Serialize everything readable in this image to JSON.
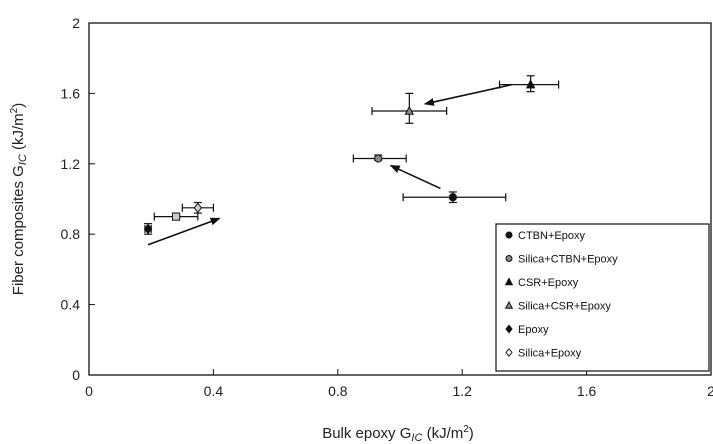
{
  "chart_data": {
    "type": "scatter",
    "title": "",
    "xlabel": "Bulk epoxy G",
    "xlabel_sub": "IC",
    "xlabel_unit": " (kJ/m",
    "xlabel_sup": "2",
    "xlabel_close": ")",
    "ylabel": "Fiber composites G",
    "ylabel_sub": "IC",
    "ylabel_unit": " (kJ/m",
    "ylabel_sup": "2",
    "ylabel_close": ")",
    "xlim": [
      0,
      2
    ],
    "ylim": [
      0,
      2
    ],
    "xticks": [
      "0",
      "0.4",
      "0.8",
      "1.2",
      "1.6",
      "2"
    ],
    "xtick_values": [
      0,
      0.4,
      0.8,
      1.2,
      1.6,
      2
    ],
    "yticks": [
      "0",
      "0.4",
      "0.8",
      "1.2",
      "1.6",
      "2"
    ],
    "ytick_values": [
      0,
      0.4,
      0.8,
      1.2,
      1.6,
      2
    ],
    "grid": false,
    "legend_position": "bottom-right",
    "series": [
      {
        "name": "CTBN+Epoxy",
        "marker": "circle",
        "fill": "#111111",
        "x": 1.17,
        "y": 1.01,
        "xerr": [
          1.01,
          1.34
        ],
        "yerr": [
          0.98,
          1.04
        ]
      },
      {
        "name": "Silica+CTBN+Epoxy",
        "marker": "circle",
        "fill": "#888888",
        "x": 0.93,
        "y": 1.23,
        "xerr": [
          0.85,
          1.02
        ],
        "yerr": [
          1.22,
          1.25
        ]
      },
      {
        "name": "CSR+Epoxy",
        "marker": "triangle",
        "fill": "#111111",
        "x": 1.42,
        "y": 1.65,
        "xerr": [
          1.32,
          1.51
        ],
        "yerr": [
          1.61,
          1.7
        ]
      },
      {
        "name": "Silica+CSR+Epoxy",
        "marker": "triangle",
        "fill": "#888888",
        "x": 1.03,
        "y": 1.5,
        "xerr": [
          0.91,
          1.15
        ],
        "yerr": [
          1.43,
          1.6
        ]
      },
      {
        "name": "Epoxy",
        "marker": "diamond",
        "fill": "#111111",
        "x": 0.19,
        "y": 0.83,
        "xerr": [
          0.18,
          0.2
        ],
        "yerr": [
          0.8,
          0.86
        ]
      },
      {
        "name": "Silica+Epoxy",
        "marker": "square",
        "fill": "#cccccc",
        "x": 0.28,
        "y": 0.9,
        "xerr": [
          0.21,
          0.35
        ],
        "yerr": [
          0.89,
          0.91
        ]
      },
      {
        "name": "Silica+Epoxy",
        "marker": "diamond",
        "fill": "#cccccc",
        "x": 0.35,
        "y": 0.95,
        "xerr": [
          0.3,
          0.4
        ],
        "yerr": [
          0.92,
          0.98
        ]
      }
    ],
    "arrows": [
      {
        "from": [
          1.36,
          1.65
        ],
        "to": [
          1.08,
          1.54
        ]
      },
      {
        "from": [
          1.13,
          1.06
        ],
        "to": [
          0.97,
          1.19
        ]
      },
      {
        "from": [
          0.19,
          0.74
        ],
        "to": [
          0.42,
          0.89
        ]
      }
    ],
    "legend": [
      {
        "label": "CTBN+Epoxy",
        "marker": "circle",
        "fill": "#111111"
      },
      {
        "label": "Silica+CTBN+Epoxy",
        "marker": "circle",
        "fill": "#888888"
      },
      {
        "label": "CSR+Epoxy",
        "marker": "triangle",
        "fill": "#111111"
      },
      {
        "label": "Silica+CSR+Epoxy",
        "marker": "triangle",
        "fill": "#888888"
      },
      {
        "label": "Epoxy",
        "marker": "diamond",
        "fill": "#111111"
      },
      {
        "label": "Silica+Epoxy",
        "marker": "diamond",
        "fill": "#ffffff"
      }
    ]
  }
}
